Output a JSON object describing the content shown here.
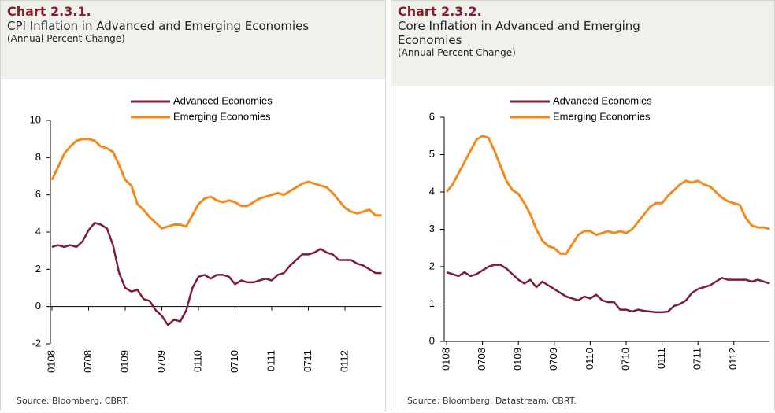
{
  "chart_data": [
    {
      "type": "line",
      "label": "Chart 2.3.1.",
      "title": "CPI Inflation in Advanced and Emerging Economies",
      "subtitle": "(Annual Percent Change)",
      "source": "Source: Bloomberg, CBRT.",
      "categories": [
        "0108",
        null,
        null,
        null,
        null,
        null,
        "0708",
        null,
        null,
        null,
        null,
        null,
        "0109",
        null,
        null,
        null,
        null,
        null,
        "0709",
        null,
        null,
        null,
        null,
        null,
        "0110",
        null,
        null,
        null,
        null,
        null,
        "0710",
        null,
        null,
        null,
        null,
        null,
        "0111",
        null,
        null,
        null,
        null,
        null,
        "0711",
        null,
        null,
        null,
        null,
        null,
        "0112",
        null,
        null,
        null,
        null,
        null,
        null
      ],
      "series": [
        {
          "name": "Advanced Economies",
          "color": "#7f1d33",
          "values": [
            3.2,
            3.3,
            3.2,
            3.3,
            3.2,
            3.5,
            4.1,
            4.5,
            4.4,
            4.2,
            3.3,
            1.8,
            1.0,
            0.8,
            0.9,
            0.4,
            0.3,
            -0.2,
            -0.5,
            -1.0,
            -0.7,
            -0.8,
            -0.2,
            1.0,
            1.6,
            1.7,
            1.5,
            1.7,
            1.7,
            1.6,
            1.2,
            1.4,
            1.3,
            1.3,
            1.4,
            1.5,
            1.4,
            1.7,
            1.8,
            2.2,
            2.5,
            2.8,
            2.8,
            2.9,
            3.1,
            2.9,
            2.8,
            2.5,
            2.5,
            2.5,
            2.3,
            2.2,
            2.0,
            1.8,
            1.8
          ]
        },
        {
          "name": "Emerging Economies",
          "color": "#f28a1e",
          "values": [
            6.8,
            7.5,
            8.2,
            8.6,
            8.9,
            9.0,
            9.0,
            8.9,
            8.6,
            8.5,
            8.3,
            7.6,
            6.8,
            6.5,
            5.5,
            5.2,
            4.8,
            4.5,
            4.2,
            4.3,
            4.4,
            4.4,
            4.3,
            4.9,
            5.5,
            5.8,
            5.9,
            5.7,
            5.6,
            5.7,
            5.6,
            5.4,
            5.4,
            5.6,
            5.8,
            5.9,
            6.0,
            6.1,
            6.0,
            6.2,
            6.4,
            6.6,
            6.7,
            6.6,
            6.5,
            6.4,
            6.1,
            5.7,
            5.3,
            5.1,
            5.0,
            5.1,
            5.2,
            4.9,
            4.9
          ]
        }
      ],
      "ylim": [
        -2,
        10
      ],
      "yticks": [
        -2,
        0,
        2,
        4,
        6,
        8,
        10
      ],
      "legend": "top"
    },
    {
      "type": "line",
      "label": "Chart 2.3.2.",
      "title": "Core Inflation in Advanced and Emerging Economies",
      "subtitle": "(Annual Percent Change)",
      "source": "Source: Bloomberg, Datastream, CBRT.",
      "categories": [
        "0108",
        null,
        null,
        null,
        null,
        null,
        "0708",
        null,
        null,
        null,
        null,
        null,
        "0109",
        null,
        null,
        null,
        null,
        null,
        "0709",
        null,
        null,
        null,
        null,
        null,
        "0110",
        null,
        null,
        null,
        null,
        null,
        "0710",
        null,
        null,
        null,
        null,
        null,
        "0111",
        null,
        null,
        null,
        null,
        null,
        "0711",
        null,
        null,
        null,
        null,
        null,
        "0112",
        null,
        null,
        null,
        null,
        null,
        null
      ],
      "series": [
        {
          "name": "Advanced Economies",
          "color": "#7f1d33",
          "values": [
            1.85,
            1.8,
            1.75,
            1.85,
            1.75,
            1.8,
            1.9,
            2.0,
            2.05,
            2.05,
            1.95,
            1.8,
            1.65,
            1.55,
            1.65,
            1.45,
            1.6,
            1.5,
            1.4,
            1.3,
            1.2,
            1.15,
            1.1,
            1.2,
            1.15,
            1.25,
            1.1,
            1.05,
            1.05,
            0.85,
            0.85,
            0.8,
            0.85,
            0.82,
            0.8,
            0.78,
            0.78,
            0.8,
            0.95,
            1.0,
            1.1,
            1.3,
            1.4,
            1.45,
            1.5,
            1.6,
            1.7,
            1.65,
            1.65,
            1.65,
            1.65,
            1.6,
            1.65,
            1.6,
            1.55
          ]
        },
        {
          "name": "Emerging Economies",
          "color": "#f28a1e",
          "values": [
            4.0,
            4.2,
            4.5,
            4.8,
            5.1,
            5.4,
            5.5,
            5.45,
            5.1,
            4.7,
            4.3,
            4.05,
            3.95,
            3.7,
            3.4,
            3.0,
            2.7,
            2.55,
            2.5,
            2.35,
            2.35,
            2.6,
            2.85,
            2.95,
            2.95,
            2.85,
            2.9,
            2.95,
            2.9,
            2.95,
            2.9,
            3.0,
            3.2,
            3.4,
            3.6,
            3.7,
            3.7,
            3.9,
            4.05,
            4.2,
            4.3,
            4.25,
            4.3,
            4.2,
            4.15,
            4.0,
            3.85,
            3.75,
            3.7,
            3.65,
            3.3,
            3.1,
            3.05,
            3.05,
            3.0
          ]
        }
      ],
      "ylim": [
        0,
        6
      ],
      "yticks": [
        0,
        1,
        2,
        3,
        4,
        5,
        6
      ],
      "legend": "top"
    }
  ]
}
